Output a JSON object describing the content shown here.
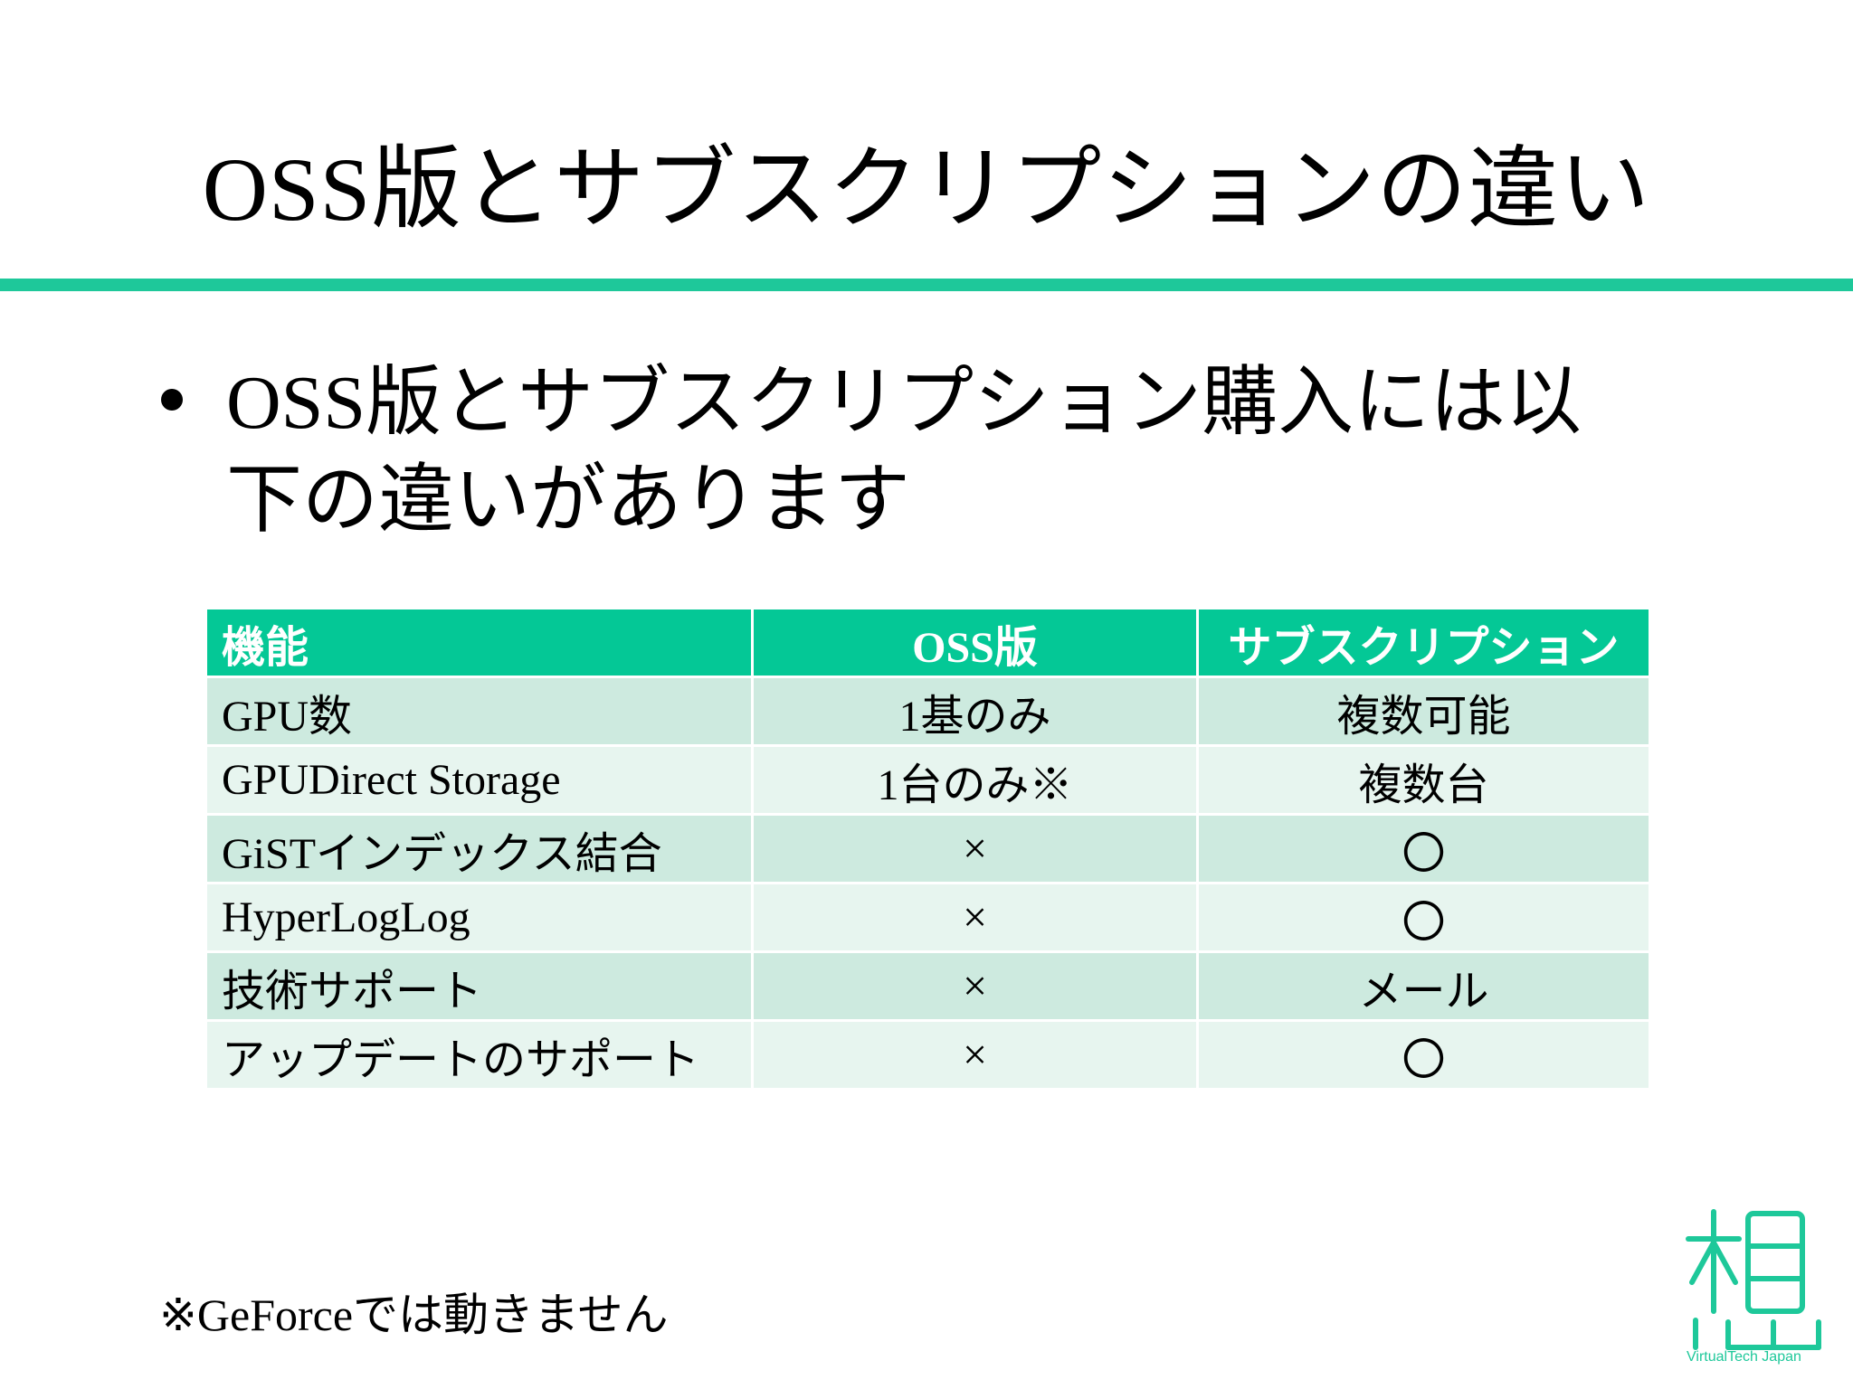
{
  "slide": {
    "title": "OSS版とサブスクリプションの違い",
    "bullet": "OSS版とサブスクリプション購入には以下の違いがあります",
    "table": {
      "headers": [
        "機能",
        "OSS版",
        "サブスクリプション"
      ],
      "rows": [
        [
          "GPU数",
          "1基のみ",
          "複数可能"
        ],
        [
          "GPUDirect Storage",
          "1台のみ※",
          "複数台"
        ],
        [
          "GiSTインデックス結合",
          "×",
          "〇"
        ],
        [
          "HyperLogLog",
          "×",
          "〇"
        ],
        [
          "技術サポート",
          "×",
          "メール"
        ],
        [
          "アップデートのサポート",
          "×",
          "〇"
        ]
      ]
    },
    "footnote": "※GeForceでは動きません",
    "logo": {
      "text": "VirtualTech Japan",
      "color": "#1ec89a"
    },
    "colors": {
      "accent_rule": "#1ec89a",
      "header_bg": "#04c896",
      "row_odd_bg": "#cdeadf",
      "row_even_bg": "#e7f5ef"
    }
  }
}
